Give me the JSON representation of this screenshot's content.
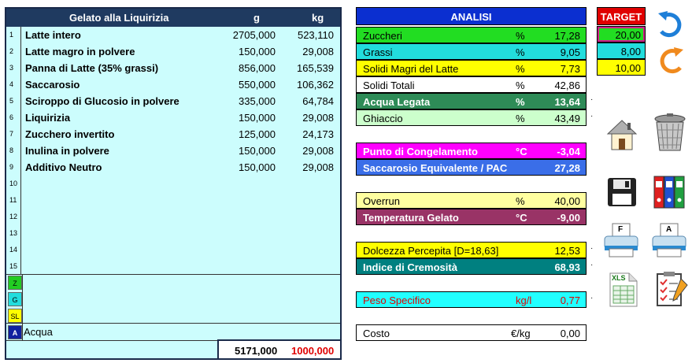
{
  "recipe": {
    "title": "Gelato alla Liquirizia",
    "col_g": "g",
    "col_kg": "kg",
    "rows": [
      {
        "n": "1",
        "name": "Latte intero",
        "g": "2705,000",
        "kg": "523,110"
      },
      {
        "n": "2",
        "name": "Latte magro in polvere",
        "g": "150,000",
        "kg": "29,008"
      },
      {
        "n": "3",
        "name": "Panna di Latte (35% grassi)",
        "g": "856,000",
        "kg": "165,539"
      },
      {
        "n": "4",
        "name": "Saccarosio",
        "g": "550,000",
        "kg": "106,362"
      },
      {
        "n": "5",
        "name": "Sciroppo di Glucosio in polvere",
        "g": "335,000",
        "kg": "64,784"
      },
      {
        "n": "6",
        "name": "Liquirizia",
        "g": "150,000",
        "kg": "29,008"
      },
      {
        "n": "7",
        "name": "Zucchero invertito",
        "g": "125,000",
        "kg": "24,173"
      },
      {
        "n": "8",
        "name": "Inulina in polvere",
        "g": "150,000",
        "kg": "29,008"
      },
      {
        "n": "9",
        "name": "Additivo Neutro",
        "g": "150,000",
        "kg": "29,008"
      },
      {
        "n": "10",
        "name": "",
        "g": "",
        "kg": ""
      },
      {
        "n": "11",
        "name": "",
        "g": "",
        "kg": ""
      },
      {
        "n": "12",
        "name": "",
        "g": "",
        "kg": ""
      },
      {
        "n": "13",
        "name": "",
        "g": "",
        "kg": ""
      },
      {
        "n": "14",
        "name": "",
        "g": "",
        "kg": ""
      },
      {
        "n": "15",
        "name": "",
        "g": "",
        "kg": ""
      }
    ],
    "tags": {
      "z": "Z",
      "g": "G",
      "sl": "SL",
      "a": "A"
    },
    "acqua": "Acqua",
    "total_g": "5171,000",
    "total_kg": "1000,000"
  },
  "analisi": {
    "title": "ANALISI",
    "group1": [
      {
        "label": "Zuccheri",
        "unit": "%",
        "value": "17,28"
      },
      {
        "label": "Grassi",
        "unit": "%",
        "value": "9,05"
      },
      {
        "label": "Solidi Magri del Latte",
        "unit": "%",
        "value": "7,73"
      },
      {
        "label": "Solidi Totali",
        "unit": "%",
        "value": "42,86"
      },
      {
        "label": "Acqua Legata",
        "unit": "%",
        "value": "13,64"
      },
      {
        "label": "Ghiaccio",
        "unit": "%",
        "value": "43,49"
      }
    ],
    "group2": [
      {
        "label": "Punto di Congelamento",
        "unit": "°C",
        "value": "-3,04"
      },
      {
        "label": "Saccarosio Equivalente / PAC",
        "unit": "",
        "value": "27,28"
      }
    ],
    "group3": [
      {
        "label": "Overrun",
        "unit": "%",
        "value": "40,00"
      },
      {
        "label": "Temperatura Gelato",
        "unit": "°C",
        "value": "-9,00"
      }
    ],
    "group4": [
      {
        "label": "Dolcezza Percepita [D=18,63]",
        "unit": "",
        "value": "12,53"
      },
      {
        "label": "Indice di Cremosità",
        "unit": "",
        "value": "68,93"
      }
    ],
    "peso": {
      "label": "Peso Specifico",
      "unit": "kg/l",
      "value": "0,77"
    },
    "costo": {
      "label": "Costo",
      "unit": "€/kg",
      "value": "0,00"
    }
  },
  "target": {
    "title": "TARGET",
    "values": [
      "20,00",
      "8,00",
      "10,00"
    ]
  },
  "toolbar": {
    "print_f": "F",
    "print_a": "A",
    "xls": "XLS"
  },
  "icons": [
    "redo-icon",
    "undo-icon",
    "home-icon",
    "trash-icon",
    "save-icon",
    "binders-icon",
    "print-f-icon",
    "print-a-icon",
    "excel-icon",
    "checklist-icon"
  ]
}
